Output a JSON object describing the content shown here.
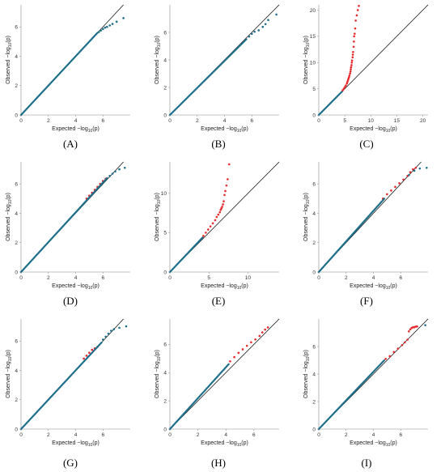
{
  "figure": {
    "xlabel_main": "Expected −log",
    "xlabel_sub": "10",
    "xlabel_tail": "(p)",
    "ylabel_main": "Observed −log",
    "ylabel_sub": "10",
    "ylabel_tail": "(p)",
    "colors": {
      "below": "#1f6f8b",
      "above": "#e8282b",
      "diagonal": "#000000",
      "axis": "#888888"
    }
  },
  "chart_data": [
    {
      "type": "scatter",
      "label": "(A)",
      "xlim": [
        0,
        8
      ],
      "ylim": [
        0,
        7.5
      ],
      "xticks": [
        0,
        2,
        4,
        6
      ],
      "yticks": [
        0,
        2,
        4,
        6
      ],
      "series": [
        {
          "color": "#1f6f8b",
          "line_to": [
            5.6,
            5.6
          ],
          "x": [
            5.7,
            5.85,
            6.0,
            6.15,
            6.3,
            6.5,
            6.7,
            7.0,
            7.5
          ],
          "y": [
            5.65,
            5.75,
            5.85,
            5.95,
            6.0,
            6.1,
            6.2,
            6.35,
            6.6
          ]
        }
      ]
    },
    {
      "type": "scatter",
      "label": "(B)",
      "xlim": [
        0,
        8
      ],
      "ylim": [
        0,
        8
      ],
      "xticks": [
        0,
        2,
        4,
        6
      ],
      "yticks": [
        0,
        2,
        4,
        6
      ],
      "series": [
        {
          "color": "#1f6f8b",
          "line_to": [
            5.6,
            5.5
          ],
          "x": [
            5.8,
            6.0,
            6.2,
            6.5,
            6.8,
            7.0,
            7.2,
            7.8
          ],
          "y": [
            5.7,
            5.9,
            6.05,
            6.15,
            6.4,
            6.6,
            6.9,
            7.3
          ]
        }
      ]
    },
    {
      "type": "scatter",
      "label": "(C)",
      "xlim": [
        0,
        21
      ],
      "ylim": [
        0,
        21
      ],
      "xticks": [
        0,
        5,
        10,
        15,
        20
      ],
      "yticks": [
        0,
        5,
        10,
        15,
        20
      ],
      "series": [
        {
          "color": "#1f6f8b",
          "line_to": [
            4.5,
            4.5
          ],
          "x": [],
          "y": []
        },
        {
          "color": "#e8282b",
          "line_to": null,
          "x": [
            4.6,
            4.8,
            5.0,
            5.2,
            5.4,
            5.5,
            5.6,
            5.7,
            5.8,
            5.9,
            6.0,
            6.1,
            6.15,
            6.2,
            6.3,
            6.35,
            6.4,
            6.5,
            6.55,
            6.6,
            6.7,
            6.75,
            6.8,
            6.9,
            7.0,
            7.1,
            7.3,
            7.5,
            7.7
          ],
          "y": [
            4.7,
            5.0,
            5.3,
            5.6,
            6.0,
            6.3,
            6.6,
            6.9,
            7.2,
            7.5,
            7.9,
            8.3,
            8.7,
            9.1,
            9.5,
            10.0,
            10.4,
            11.0,
            11.5,
            12.0,
            13.0,
            14.0,
            15.0,
            15.5,
            16.5,
            18.0,
            19.0,
            20.0,
            20.8
          ]
        }
      ]
    },
    {
      "type": "scatter",
      "label": "(D)",
      "xlim": [
        0,
        8
      ],
      "ylim": [
        0,
        7.5
      ],
      "xticks": [
        0,
        2,
        4,
        6
      ],
      "yticks": [
        0,
        2,
        4,
        6
      ],
      "series": [
        {
          "color": "#e8282b",
          "line_to": null,
          "x": [
            4.8,
            5.0,
            5.2,
            5.4,
            5.6,
            5.8,
            6.0,
            6.2
          ],
          "y": [
            5.0,
            5.2,
            5.4,
            5.6,
            5.8,
            6.0,
            6.2,
            6.35
          ]
        },
        {
          "color": "#1f6f8b",
          "line_to": [
            6.3,
            6.4
          ],
          "x": [
            6.5,
            6.7,
            6.9,
            7.2,
            7.6
          ],
          "y": [
            6.55,
            6.7,
            6.85,
            7.0,
            7.1
          ]
        }
      ]
    },
    {
      "type": "scatter",
      "label": "(E)",
      "xlim": [
        0,
        14
      ],
      "ylim": [
        0,
        14
      ],
      "xticks": [
        0,
        5,
        10
      ],
      "yticks": [
        0,
        5,
        10
      ],
      "series": [
        {
          "color": "#1f6f8b",
          "line_to": [
            4.2,
            4.4
          ],
          "x": [],
          "y": []
        },
        {
          "color": "#e8282b",
          "line_to": null,
          "x": [
            4.3,
            4.6,
            4.9,
            5.2,
            5.5,
            5.8,
            6.0,
            6.2,
            6.4,
            6.5,
            6.6,
            6.7,
            6.8,
            6.9,
            7.0,
            7.1,
            7.25,
            7.4,
            7.6
          ],
          "y": [
            4.6,
            5.0,
            5.4,
            5.8,
            6.2,
            6.6,
            7.0,
            7.3,
            7.6,
            7.9,
            8.1,
            8.3,
            8.6,
            9.0,
            9.8,
            10.3,
            11.0,
            11.8,
            13.7
          ]
        }
      ]
    },
    {
      "type": "scatter",
      "label": "(F)",
      "xlim": [
        0,
        8
      ],
      "ylim": [
        0,
        7.5
      ],
      "xticks": [
        0,
        2,
        4,
        6
      ],
      "yticks": [
        0,
        2,
        4,
        6
      ],
      "series": [
        {
          "color": "#e8282b",
          "line_to": null,
          "x": [
            4.7,
            5.0,
            5.3,
            5.6,
            5.9,
            6.2,
            6.5,
            6.7,
            6.9,
            7.1
          ],
          "y": [
            5.0,
            5.3,
            5.55,
            5.8,
            6.05,
            6.3,
            6.55,
            6.8,
            7.0,
            7.1
          ]
        },
        {
          "color": "#1f6f8b",
          "line_to": [
            4.8,
            5.0
          ],
          "x": [
            6.6,
            7.0,
            7.4,
            7.9
          ],
          "y": [
            6.6,
            6.9,
            7.05,
            7.1
          ]
        }
      ]
    },
    {
      "type": "scatter",
      "label": "(G)",
      "xlim": [
        0,
        8
      ],
      "ylim": [
        0,
        7.5
      ],
      "xticks": [
        0,
        2,
        4,
        6
      ],
      "yticks": [
        0,
        2,
        4,
        6
      ],
      "series": [
        {
          "color": "#e8282b",
          "line_to": null,
          "x": [
            4.6,
            4.8,
            5.0,
            5.2,
            5.4,
            5.6
          ],
          "y": [
            4.8,
            5.0,
            5.2,
            5.4,
            5.5,
            5.6
          ]
        },
        {
          "color": "#1f6f8b",
          "line_to": [
            5.9,
            5.9
          ],
          "x": [
            6.0,
            6.2,
            6.4,
            6.6,
            6.8,
            7.2,
            7.7
          ],
          "y": [
            6.1,
            6.3,
            6.5,
            6.7,
            6.8,
            6.9,
            7.0
          ]
        }
      ]
    },
    {
      "type": "scatter",
      "label": "(H)",
      "xlim": [
        0,
        7.8
      ],
      "ylim": [
        0,
        7.8
      ],
      "xticks": [
        0,
        2,
        4,
        6
      ],
      "yticks": [
        0,
        2,
        4,
        6
      ],
      "series": [
        {
          "color": "#1f6f8b",
          "line_to": [
            4.2,
            4.6
          ],
          "x": [],
          "y": []
        },
        {
          "color": "#e8282b",
          "line_to": null,
          "x": [
            4.3,
            4.6,
            4.9,
            5.2,
            5.5,
            5.8,
            6.1,
            6.4,
            6.6,
            6.8,
            7.0
          ],
          "y": [
            4.8,
            5.1,
            5.4,
            5.65,
            5.9,
            6.15,
            6.35,
            6.6,
            6.85,
            7.05,
            7.2
          ]
        }
      ]
    },
    {
      "type": "scatter",
      "label": "(I)",
      "xlim": [
        0,
        8
      ],
      "ylim": [
        0,
        8
      ],
      "xticks": [
        0,
        2,
        4,
        6
      ],
      "yticks": [
        0,
        2,
        4,
        6
      ],
      "series": [
        {
          "color": "#1f6f8b",
          "line_to": [
            4.8,
            5.0
          ],
          "x": [],
          "y": []
        },
        {
          "color": "#e8282b",
          "line_to": null,
          "x": [
            4.9,
            5.2,
            5.5,
            5.8,
            6.1,
            6.3,
            6.5,
            6.6,
            6.7,
            6.8,
            6.9,
            7.0,
            7.1,
            7.2
          ],
          "y": [
            5.1,
            5.3,
            5.6,
            5.85,
            6.1,
            6.3,
            6.5,
            7.1,
            7.25,
            7.35,
            7.4,
            7.4,
            7.45,
            7.45
          ]
        },
        {
          "color": "#1f6f8b",
          "line_to": null,
          "x": [
            7.8
          ],
          "y": [
            7.55
          ]
        }
      ]
    }
  ]
}
